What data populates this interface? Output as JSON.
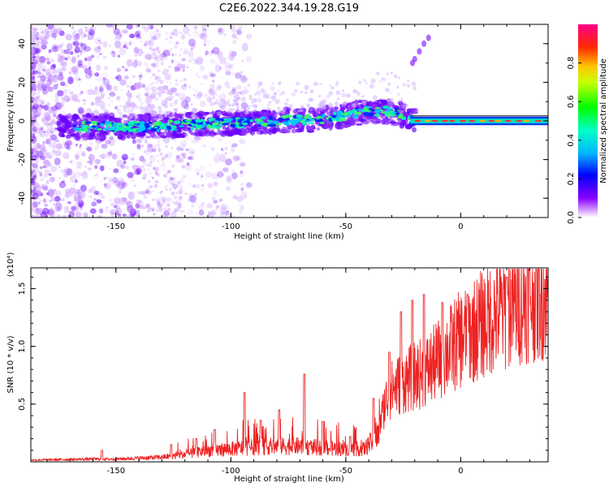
{
  "title": "C2E6.2022.344.19.28.G19",
  "chart_data": [
    {
      "type": "heatmap",
      "xlabel": "Height of straight line (km)",
      "ylabel": "Frequency (Hz)",
      "xlim": [
        -187,
        38
      ],
      "ylim": [
        -50,
        50
      ],
      "xticks": [
        -150,
        -100,
        -50,
        0
      ],
      "yticks": [
        -40,
        -20,
        0,
        20,
        40
      ],
      "colorbar": {
        "label": "Normalized spectral amplitude",
        "range": [
          0,
          1
        ],
        "ticks": [
          0.0,
          0.2,
          0.4,
          0.6,
          0.8
        ],
        "tick_labels": [
          "0.0",
          "0.2",
          "0.4",
          "0.6",
          "0.8"
        ]
      },
      "ridge": {
        "x": [
          -187,
          -160,
          -140,
          -120,
          -100,
          -80,
          -60,
          -40,
          -30,
          -25,
          -20,
          38
        ],
        "y": [
          -3,
          -3,
          -3,
          -2,
          -1,
          0,
          1,
          5,
          5,
          3,
          0,
          0
        ]
      },
      "grid": false
    },
    {
      "type": "line",
      "xlabel": "Height of straight line (km)",
      "ylabel": "SNR (10 * v/v)",
      "ymultiplier": "(x10⁴)",
      "xlim": [
        -187,
        38
      ],
      "ylim": [
        0.0,
        1.68
      ],
      "xticks": [
        -150,
        -100,
        -50,
        0
      ],
      "yticks": [
        0.5,
        1.0,
        1.5
      ],
      "ytick_labels": [
        "0.5",
        "1.0",
        "1.5"
      ],
      "series": [
        {
          "color": "#ee2222",
          "envelope_x": [
            -187,
            -160,
            -150,
            -140,
            -130,
            -120,
            -110,
            -100,
            -90,
            -80,
            -70,
            -60,
            -50,
            -42,
            -36,
            -33,
            -30,
            -25,
            -20,
            -15,
            -10,
            -5,
            0,
            5,
            10,
            15,
            20,
            25,
            30,
            38
          ],
          "envelope_y": [
            0.02,
            0.03,
            0.03,
            0.04,
            0.05,
            0.08,
            0.12,
            0.14,
            0.16,
            0.17,
            0.17,
            0.15,
            0.14,
            0.14,
            0.28,
            0.55,
            0.68,
            0.75,
            0.8,
            0.85,
            0.95,
            1.05,
            1.15,
            1.22,
            1.3,
            1.38,
            1.43,
            1.5,
            1.55,
            1.58
          ],
          "spikes": [
            {
              "x": -156,
              "y": 0.1
            },
            {
              "x": -126,
              "y": 0.15
            },
            {
              "x": -115,
              "y": 0.2
            },
            {
              "x": -107,
              "y": 0.28
            },
            {
              "x": -94,
              "y": 0.6
            },
            {
              "x": -87,
              "y": 0.36
            },
            {
              "x": -79,
              "y": 0.45
            },
            {
              "x": -68,
              "y": 0.76
            },
            {
              "x": -60,
              "y": 0.35
            },
            {
              "x": -48,
              "y": 0.22
            },
            {
              "x": -38,
              "y": 0.55
            },
            {
              "x": -31,
              "y": 0.95
            },
            {
              "x": -26,
              "y": 1.3
            },
            {
              "x": -21,
              "y": 1.4
            },
            {
              "x": -16,
              "y": 1.45
            },
            {
              "x": -8,
              "y": 1.38
            },
            {
              "x": 3,
              "y": 1.45
            },
            {
              "x": 20,
              "y": 1.6
            }
          ]
        }
      ]
    }
  ]
}
